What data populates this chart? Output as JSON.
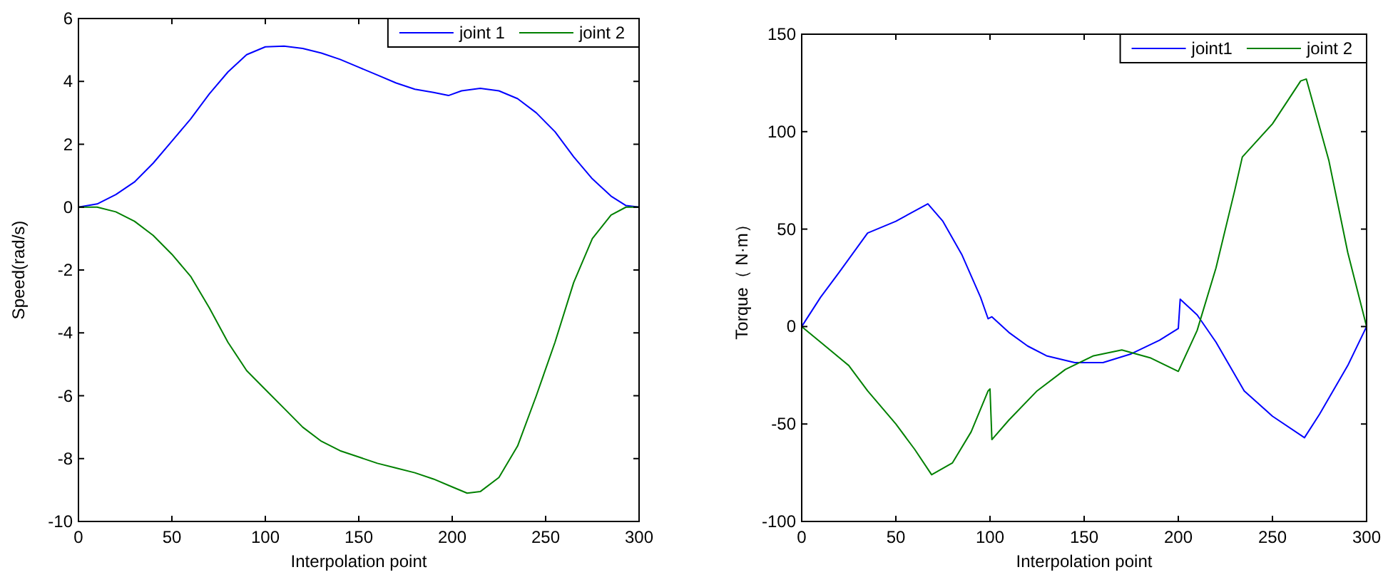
{
  "chart_data": [
    {
      "type": "line",
      "xlabel": "Interpolation point",
      "ylabel": "Speed(rad/s)",
      "xlim": [
        0,
        300
      ],
      "ylim": [
        -10,
        6
      ],
      "xticks": [
        0,
        50,
        100,
        150,
        200,
        250,
        300
      ],
      "yticks": [
        -10,
        -8,
        -6,
        -4,
        -2,
        0,
        2,
        4,
        6
      ],
      "legend": "top right",
      "series": [
        {
          "name": "joint 1",
          "color": "#0000ff",
          "x": [
            0,
            10,
            20,
            30,
            40,
            50,
            60,
            70,
            80,
            90,
            100,
            110,
            120,
            130,
            140,
            150,
            160,
            170,
            180,
            190,
            198,
            205,
            215,
            225,
            235,
            245,
            255,
            265,
            275,
            285,
            293,
            300
          ],
          "values": [
            0,
            0.1,
            0.4,
            0.8,
            1.4,
            2.1,
            2.8,
            3.6,
            4.3,
            4.85,
            5.1,
            5.12,
            5.05,
            4.9,
            4.7,
            4.45,
            4.2,
            3.95,
            3.75,
            3.65,
            3.55,
            3.7,
            3.78,
            3.7,
            3.45,
            3.0,
            2.4,
            1.6,
            0.9,
            0.35,
            0.05,
            0
          ]
        },
        {
          "name": "joint 2",
          "color": "#008000",
          "x": [
            0,
            10,
            20,
            30,
            40,
            50,
            60,
            70,
            80,
            90,
            100,
            110,
            120,
            130,
            140,
            150,
            160,
            170,
            180,
            190,
            200,
            208,
            215,
            225,
            235,
            245,
            255,
            265,
            275,
            285,
            293,
            300
          ],
          "values": [
            0,
            0,
            -0.15,
            -0.45,
            -0.9,
            -1.5,
            -2.2,
            -3.2,
            -4.3,
            -5.2,
            -5.8,
            -6.4,
            -7.0,
            -7.45,
            -7.75,
            -7.95,
            -8.15,
            -8.3,
            -8.45,
            -8.65,
            -8.9,
            -9.1,
            -9.05,
            -8.6,
            -7.6,
            -6.0,
            -4.3,
            -2.4,
            -1.0,
            -0.25,
            0,
            0
          ]
        }
      ]
    },
    {
      "type": "line",
      "xlabel": "Interpolation point",
      "ylabel": "Torque（ N·m）",
      "xlim": [
        0,
        300
      ],
      "ylim": [
        -100,
        150
      ],
      "xticks": [
        0,
        50,
        100,
        150,
        200,
        250,
        300
      ],
      "yticks": [
        -100,
        -50,
        0,
        50,
        100,
        150
      ],
      "legend": "top right",
      "series": [
        {
          "name": "joint1",
          "color": "#0000ff",
          "x": [
            0,
            10,
            20,
            35,
            50,
            67,
            75,
            85,
            95,
            99,
            101,
            110,
            120,
            130,
            145,
            160,
            175,
            190,
            200,
            201,
            210,
            220,
            235,
            250,
            267,
            275,
            290,
            300
          ],
          "values": [
            0,
            15,
            28,
            48,
            54,
            63,
            54,
            37,
            15,
            4,
            5,
            -3,
            -10,
            -15,
            -18.5,
            -18.5,
            -14,
            -7,
            -1,
            14,
            6,
            -8,
            -33,
            -46,
            -57,
            -45,
            -20,
            0
          ]
        },
        {
          "name": "joint 2",
          "color": "#008000",
          "x": [
            0,
            10,
            25,
            35,
            50,
            60,
            69,
            80,
            90,
            99,
            100,
            101,
            110,
            125,
            140,
            155,
            170,
            185,
            200,
            210,
            220,
            230,
            234,
            250,
            265,
            268,
            280,
            290,
            300
          ],
          "values": [
            0,
            -8,
            -20,
            -33,
            -50,
            -63,
            -76,
            -70,
            -54,
            -33,
            -32,
            -58,
            -48,
            -33,
            -22,
            -15,
            -12,
            -16,
            -23,
            -2,
            30,
            70,
            87,
            104,
            126,
            127,
            85,
            38,
            0
          ]
        }
      ]
    }
  ]
}
